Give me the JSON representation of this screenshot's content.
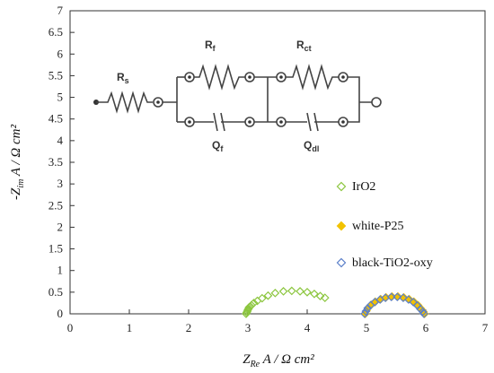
{
  "chart_data": {
    "type": "scatter",
    "xlabel": "Z",
    "xlabel_sub": "Re",
    "xlabel_rest": " A / Ω cm²",
    "ylabel_prefix": "-Z",
    "ylabel_sub": "im",
    "ylabel_rest": " A / Ω cm²",
    "xlim": [
      0,
      7
    ],
    "ylim": [
      0,
      7
    ],
    "x_ticks": [
      "0",
      "1",
      "2",
      "3",
      "4",
      "5",
      "6",
      "7"
    ],
    "y_ticks": [
      "0",
      "0.5",
      "1",
      "1.5",
      "2",
      "2.5",
      "3",
      "3.5",
      "4",
      "4.5",
      "5",
      "5.5",
      "6",
      "6.5",
      "7"
    ],
    "grid": false,
    "legend_position": "right",
    "series": [
      {
        "name": "IrO2",
        "color": "#8cc63f",
        "marker": "diamond-open",
        "x": [
          2.97,
          2.98,
          2.99,
          3.0,
          3.01,
          3.02,
          3.04,
          3.06,
          3.1,
          3.16,
          3.24,
          3.34,
          3.46,
          3.6,
          3.74,
          3.88,
          4.0,
          4.12,
          4.22,
          4.3
        ],
        "y": [
          0.0,
          0.03,
          0.06,
          0.09,
          0.12,
          0.15,
          0.17,
          0.2,
          0.25,
          0.3,
          0.36,
          0.42,
          0.48,
          0.52,
          0.53,
          0.52,
          0.5,
          0.46,
          0.41,
          0.37
        ]
      },
      {
        "name": "white-P25",
        "color": "#f2c200",
        "marker": "diamond-filled",
        "x": [
          4.98,
          5.0,
          5.03,
          5.08,
          5.15,
          5.24,
          5.33,
          5.43,
          5.53,
          5.63,
          5.72,
          5.8,
          5.87,
          5.92,
          5.96,
          5.98
        ],
        "y": [
          0.0,
          0.07,
          0.14,
          0.21,
          0.28,
          0.34,
          0.38,
          0.4,
          0.4,
          0.38,
          0.34,
          0.28,
          0.2,
          0.12,
          0.05,
          0.0
        ]
      },
      {
        "name": "black-TiO2-oxy",
        "color": "#5b7fc9",
        "marker": "diamond-open",
        "x": [
          4.97,
          4.99,
          5.02,
          5.07,
          5.14,
          5.23,
          5.32,
          5.42,
          5.52,
          5.62,
          5.71,
          5.79,
          5.86,
          5.91,
          5.95,
          5.97
        ],
        "y": [
          0.0,
          0.06,
          0.13,
          0.2,
          0.27,
          0.33,
          0.37,
          0.39,
          0.39,
          0.37,
          0.33,
          0.27,
          0.19,
          0.11,
          0.05,
          0.0
        ]
      }
    ]
  },
  "inset": {
    "labels": {
      "rs": "R",
      "rs_sub": "s",
      "rf": "R",
      "rf_sub": "f",
      "rct": "R",
      "rct_sub": "ct",
      "qf": "Q",
      "qf_sub": "f",
      "qdl": "Q",
      "qdl_sub": "dl"
    }
  }
}
